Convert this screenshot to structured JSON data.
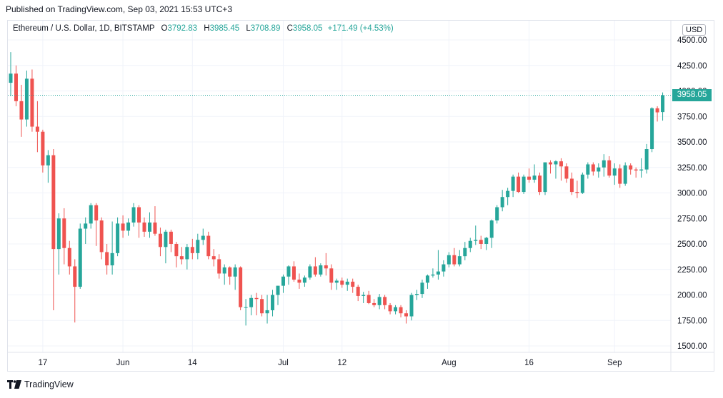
{
  "header": {
    "published": "Published on TradingView.com, Sep 03, 2021 15:53 UTC+3"
  },
  "legend": {
    "symbol": "Ethereum / U.S. Dollar, 1D, BITSTAMP",
    "o_key": "O",
    "o_val": "3792.83",
    "h_key": "H",
    "h_val": "3985.45",
    "l_key": "L",
    "l_val": "3708.89",
    "c_key": "C",
    "c_val": "3958.05",
    "change": "+171.49 (+4.53%)"
  },
  "currency_label": "USD",
  "last_price_label": "3958.05",
  "footer": {
    "brand": "TradingView"
  },
  "colors": {
    "up": "#26a69a",
    "down": "#ef5350",
    "grid": "#f0f3fa",
    "axis_text": "#131722",
    "border": "#e0e3eb"
  },
  "chart_data": {
    "type": "candlestick",
    "title": "",
    "ylim": [
      1500,
      4500
    ],
    "grid": true,
    "last_price": 3958.05,
    "y_ticks": [
      {
        "value": 4500,
        "label": "4500.00"
      },
      {
        "value": 4250,
        "label": "4250.00"
      },
      {
        "value": 4000,
        "label": "4000.00"
      },
      {
        "value": 3750,
        "label": "3750.00"
      },
      {
        "value": 3500,
        "label": "3500.00"
      },
      {
        "value": 3250,
        "label": "3250.00"
      },
      {
        "value": 3000,
        "label": "3000.00"
      },
      {
        "value": 2750,
        "label": "2750.00"
      },
      {
        "value": 2500,
        "label": "2500.00"
      },
      {
        "value": 2250,
        "label": "2250.00"
      },
      {
        "value": 2000,
        "label": "2000.00"
      },
      {
        "value": 1750,
        "label": "1750.00"
      },
      {
        "value": 1500,
        "label": "1500.00"
      }
    ],
    "x_ticks": [
      {
        "index": 6,
        "label": "17"
      },
      {
        "index": 21,
        "label": "Jun"
      },
      {
        "index": 34,
        "label": "14"
      },
      {
        "index": 51,
        "label": "Jul"
      },
      {
        "index": 62,
        "label": "12"
      },
      {
        "index": 82,
        "label": "Aug"
      },
      {
        "index": 97,
        "label": "16"
      },
      {
        "index": 113,
        "label": "Sep"
      }
    ],
    "candles": [
      {
        "o": 4080,
        "h": 4380,
        "l": 3950,
        "c": 4170
      },
      {
        "o": 4170,
        "h": 4250,
        "l": 3850,
        "c": 3900
      },
      {
        "o": 3900,
        "h": 4060,
        "l": 3550,
        "c": 3720
      },
      {
        "o": 3720,
        "h": 4200,
        "l": 3650,
        "c": 4120
      },
      {
        "o": 4120,
        "h": 4210,
        "l": 3600,
        "c": 3650
      },
      {
        "o": 3650,
        "h": 3900,
        "l": 3400,
        "c": 3600
      },
      {
        "o": 3600,
        "h": 3620,
        "l": 3200,
        "c": 3270
      },
      {
        "o": 3270,
        "h": 3420,
        "l": 3100,
        "c": 3370
      },
      {
        "o": 3370,
        "h": 3430,
        "l": 1850,
        "c": 2450
      },
      {
        "o": 2450,
        "h": 2800,
        "l": 2200,
        "c": 2750
      },
      {
        "o": 2750,
        "h": 2850,
        "l": 2300,
        "c": 2460
      },
      {
        "o": 2460,
        "h": 2530,
        "l": 2200,
        "c": 2280
      },
      {
        "o": 2280,
        "h": 2350,
        "l": 1730,
        "c": 2080
      },
      {
        "o": 2080,
        "h": 2700,
        "l": 2060,
        "c": 2650
      },
      {
        "o": 2650,
        "h": 2760,
        "l": 2500,
        "c": 2700
      },
      {
        "o": 2700,
        "h": 2900,
        "l": 2650,
        "c": 2880
      },
      {
        "o": 2880,
        "h": 2900,
        "l": 2480,
        "c": 2730
      },
      {
        "o": 2730,
        "h": 2760,
        "l": 2350,
        "c": 2420
      },
      {
        "o": 2420,
        "h": 2500,
        "l": 2200,
        "c": 2290
      },
      {
        "o": 2290,
        "h": 2720,
        "l": 2200,
        "c": 2410
      },
      {
        "o": 2410,
        "h": 2760,
        "l": 2380,
        "c": 2700
      },
      {
        "o": 2700,
        "h": 2780,
        "l": 2560,
        "c": 2630
      },
      {
        "o": 2630,
        "h": 2750,
        "l": 2580,
        "c": 2710
      },
      {
        "o": 2710,
        "h": 2900,
        "l": 2670,
        "c": 2860
      },
      {
        "o": 2860,
        "h": 2880,
        "l": 2560,
        "c": 2710
      },
      {
        "o": 2710,
        "h": 2760,
        "l": 2570,
        "c": 2620
      },
      {
        "o": 2620,
        "h": 2810,
        "l": 2560,
        "c": 2710
      },
      {
        "o": 2710,
        "h": 2870,
        "l": 2580,
        "c": 2600
      },
      {
        "o": 2600,
        "h": 2660,
        "l": 2380,
        "c": 2470
      },
      {
        "o": 2470,
        "h": 2640,
        "l": 2310,
        "c": 2620
      },
      {
        "o": 2620,
        "h": 2640,
        "l": 2420,
        "c": 2500
      },
      {
        "o": 2500,
        "h": 2520,
        "l": 2270,
        "c": 2380
      },
      {
        "o": 2380,
        "h": 2470,
        "l": 2300,
        "c": 2350
      },
      {
        "o": 2350,
        "h": 2500,
        "l": 2250,
        "c": 2470
      },
      {
        "o": 2470,
        "h": 2550,
        "l": 2350,
        "c": 2410
      },
      {
        "o": 2410,
        "h": 2600,
        "l": 2350,
        "c": 2540
      },
      {
        "o": 2540,
        "h": 2650,
        "l": 2490,
        "c": 2580
      },
      {
        "o": 2580,
        "h": 2620,
        "l": 2350,
        "c": 2380
      },
      {
        "o": 2380,
        "h": 2450,
        "l": 2280,
        "c": 2350
      },
      {
        "o": 2350,
        "h": 2400,
        "l": 2160,
        "c": 2210
      },
      {
        "o": 2210,
        "h": 2300,
        "l": 2100,
        "c": 2270
      },
      {
        "o": 2270,
        "h": 2280,
        "l": 2100,
        "c": 2180
      },
      {
        "o": 2180,
        "h": 2300,
        "l": 2050,
        "c": 2270
      },
      {
        "o": 2270,
        "h": 2280,
        "l": 1850,
        "c": 1880
      },
      {
        "o": 1880,
        "h": 1960,
        "l": 1700,
        "c": 1880
      },
      {
        "o": 1880,
        "h": 2000,
        "l": 1800,
        "c": 1970
      },
      {
        "o": 1970,
        "h": 2020,
        "l": 1800,
        "c": 1960
      },
      {
        "o": 1960,
        "h": 2000,
        "l": 1790,
        "c": 1820
      },
      {
        "o": 1820,
        "h": 2000,
        "l": 1720,
        "c": 1850
      },
      {
        "o": 1850,
        "h": 2050,
        "l": 1790,
        "c": 2000
      },
      {
        "o": 2000,
        "h": 2090,
        "l": 1900,
        "c": 2090
      },
      {
        "o": 2090,
        "h": 2200,
        "l": 2020,
        "c": 2180
      },
      {
        "o": 2180,
        "h": 2290,
        "l": 2100,
        "c": 2280
      },
      {
        "o": 2280,
        "h": 2330,
        "l": 2130,
        "c": 2150
      },
      {
        "o": 2150,
        "h": 2210,
        "l": 2060,
        "c": 2120
      },
      {
        "o": 2120,
        "h": 2190,
        "l": 2080,
        "c": 2170
      },
      {
        "o": 2170,
        "h": 2300,
        "l": 2150,
        "c": 2280
      },
      {
        "o": 2280,
        "h": 2370,
        "l": 2180,
        "c": 2200
      },
      {
        "o": 2200,
        "h": 2310,
        "l": 2180,
        "c": 2290
      },
      {
        "o": 2290,
        "h": 2410,
        "l": 2190,
        "c": 2260
      },
      {
        "o": 2260,
        "h": 2300,
        "l": 2050,
        "c": 2120
      },
      {
        "o": 2120,
        "h": 2160,
        "l": 2050,
        "c": 2140
      },
      {
        "o": 2140,
        "h": 2170,
        "l": 2070,
        "c": 2100
      },
      {
        "o": 2100,
        "h": 2160,
        "l": 2040,
        "c": 2130
      },
      {
        "o": 2130,
        "h": 2160,
        "l": 2020,
        "c": 2080
      },
      {
        "o": 2080,
        "h": 2100,
        "l": 1940,
        "c": 1990
      },
      {
        "o": 1990,
        "h": 2030,
        "l": 1920,
        "c": 2000
      },
      {
        "o": 2000,
        "h": 2040,
        "l": 1910,
        "c": 1920
      },
      {
        "o": 1920,
        "h": 1960,
        "l": 1880,
        "c": 1900
      },
      {
        "o": 1900,
        "h": 2010,
        "l": 1860,
        "c": 1980
      },
      {
        "o": 1980,
        "h": 2000,
        "l": 1860,
        "c": 1900
      },
      {
        "o": 1900,
        "h": 1920,
        "l": 1810,
        "c": 1840
      },
      {
        "o": 1840,
        "h": 1900,
        "l": 1810,
        "c": 1880
      },
      {
        "o": 1880,
        "h": 1900,
        "l": 1780,
        "c": 1820
      },
      {
        "o": 1820,
        "h": 1850,
        "l": 1720,
        "c": 1790
      },
      {
        "o": 1790,
        "h": 2020,
        "l": 1750,
        "c": 2000
      },
      {
        "o": 2000,
        "h": 2050,
        "l": 1950,
        "c": 2010
      },
      {
        "o": 2010,
        "h": 2150,
        "l": 1970,
        "c": 2120
      },
      {
        "o": 2120,
        "h": 2200,
        "l": 2060,
        "c": 2190
      },
      {
        "o": 2190,
        "h": 2260,
        "l": 2170,
        "c": 2200
      },
      {
        "o": 2200,
        "h": 2440,
        "l": 2150,
        "c": 2230
      },
      {
        "o": 2230,
        "h": 2340,
        "l": 2180,
        "c": 2300
      },
      {
        "o": 2300,
        "h": 2420,
        "l": 2270,
        "c": 2390
      },
      {
        "o": 2390,
        "h": 2460,
        "l": 2280,
        "c": 2300
      },
      {
        "o": 2300,
        "h": 2440,
        "l": 2280,
        "c": 2380
      },
      {
        "o": 2380,
        "h": 2520,
        "l": 2340,
        "c": 2460
      },
      {
        "o": 2460,
        "h": 2560,
        "l": 2420,
        "c": 2530
      },
      {
        "o": 2530,
        "h": 2680,
        "l": 2490,
        "c": 2540
      },
      {
        "o": 2540,
        "h": 2580,
        "l": 2450,
        "c": 2500
      },
      {
        "o": 2500,
        "h": 2570,
        "l": 2440,
        "c": 2560
      },
      {
        "o": 2560,
        "h": 2740,
        "l": 2460,
        "c": 2730
      },
      {
        "o": 2730,
        "h": 2880,
        "l": 2700,
        "c": 2860
      },
      {
        "o": 2860,
        "h": 3030,
        "l": 2820,
        "c": 2960
      },
      {
        "o": 2960,
        "h": 3050,
        "l": 2880,
        "c": 3020
      },
      {
        "o": 3020,
        "h": 3180,
        "l": 2960,
        "c": 3160
      },
      {
        "o": 3160,
        "h": 3200,
        "l": 3000,
        "c": 3010
      },
      {
        "o": 3010,
        "h": 3180,
        "l": 2990,
        "c": 3160
      },
      {
        "o": 3160,
        "h": 3240,
        "l": 3100,
        "c": 3130
      },
      {
        "o": 3130,
        "h": 3280,
        "l": 3100,
        "c": 3170
      },
      {
        "o": 3170,
        "h": 3200,
        "l": 2980,
        "c": 3010
      },
      {
        "o": 3010,
        "h": 3300,
        "l": 2980,
        "c": 3300
      },
      {
        "o": 3300,
        "h": 3320,
        "l": 3190,
        "c": 3280
      },
      {
        "o": 3280,
        "h": 3320,
        "l": 3140,
        "c": 3310
      },
      {
        "o": 3310,
        "h": 3340,
        "l": 3120,
        "c": 3260
      },
      {
        "o": 3260,
        "h": 3290,
        "l": 3100,
        "c": 3140
      },
      {
        "o": 3140,
        "h": 3200,
        "l": 2980,
        "c": 3010
      },
      {
        "o": 3010,
        "h": 3120,
        "l": 2950,
        "c": 3000
      },
      {
        "o": 3000,
        "h": 3200,
        "l": 2990,
        "c": 3180
      },
      {
        "o": 3180,
        "h": 3300,
        "l": 3140,
        "c": 3280
      },
      {
        "o": 3280,
        "h": 3300,
        "l": 3170,
        "c": 3210
      },
      {
        "o": 3210,
        "h": 3290,
        "l": 3150,
        "c": 3250
      },
      {
        "o": 3250,
        "h": 3380,
        "l": 3160,
        "c": 3320
      },
      {
        "o": 3320,
        "h": 3360,
        "l": 3150,
        "c": 3170
      },
      {
        "o": 3170,
        "h": 3290,
        "l": 3080,
        "c": 3240
      },
      {
        "o": 3240,
        "h": 3280,
        "l": 3050,
        "c": 3090
      },
      {
        "o": 3090,
        "h": 3300,
        "l": 3070,
        "c": 3270
      },
      {
        "o": 3270,
        "h": 3290,
        "l": 3180,
        "c": 3230
      },
      {
        "o": 3230,
        "h": 3250,
        "l": 3150,
        "c": 3220
      },
      {
        "o": 3220,
        "h": 3340,
        "l": 3150,
        "c": 3230
      },
      {
        "o": 3230,
        "h": 3480,
        "l": 3190,
        "c": 3430
      },
      {
        "o": 3430,
        "h": 3840,
        "l": 3400,
        "c": 3830
      },
      {
        "o": 3830,
        "h": 3850,
        "l": 3700,
        "c": 3790
      },
      {
        "o": 3792.83,
        "h": 3985.45,
        "l": 3708.89,
        "c": 3958.05
      }
    ]
  }
}
